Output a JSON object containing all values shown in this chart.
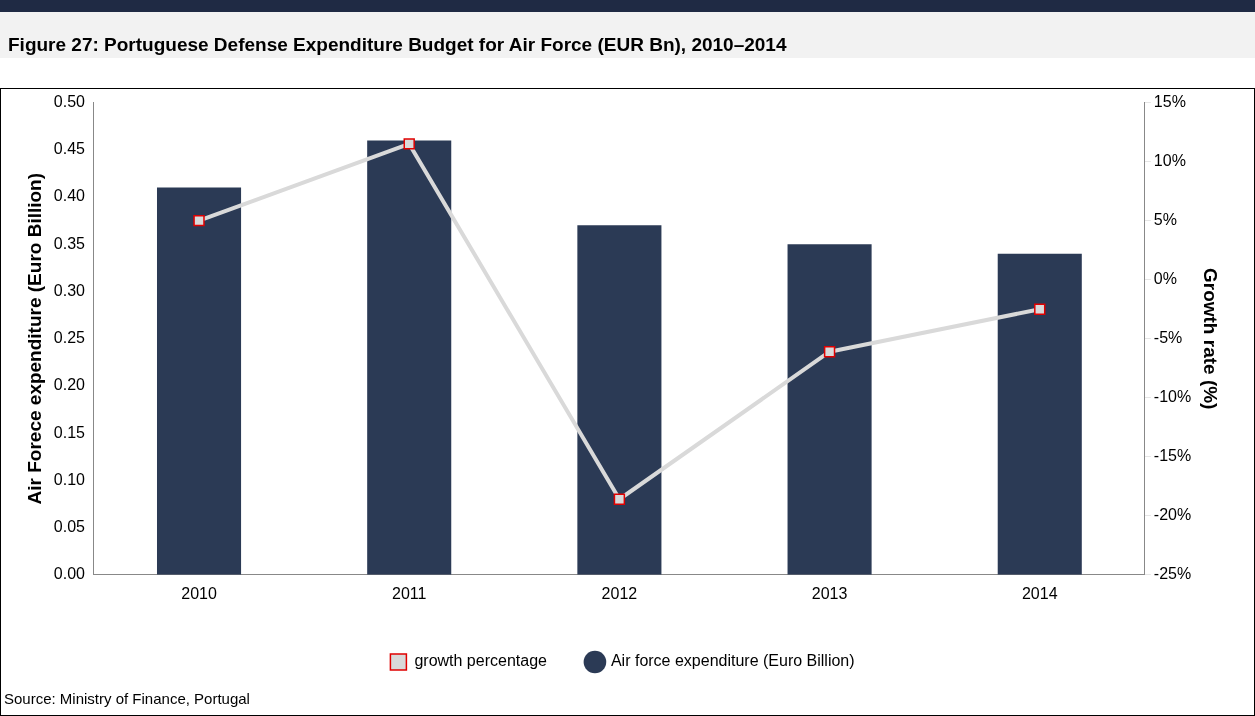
{
  "chart_data": {
    "type": "bar",
    "title": "Figure 27: Portuguese Defense Expenditure Budget for Air Force (EUR Bn), 2010–2014",
    "ylabel": "Air Forece expenditure (Euro Billion)",
    "y2label": "Growth rate (%)",
    "categories": [
      "2010",
      "2011",
      "2012",
      "2013",
      "2014"
    ],
    "series": [
      {
        "name": "Air force expenditure (Euro Billion)",
        "color": "#2b3a55",
        "values": [
          0.41,
          0.46,
          0.37,
          0.35,
          0.34
        ]
      },
      {
        "name": "growth percentage",
        "type": "line",
        "axis": "y2",
        "color": "#d9d9d9",
        "values": [
          5,
          11.5,
          -18.6,
          -6.1,
          -2.5
        ]
      }
    ],
    "ylim": [
      0,
      0.5
    ],
    "yticks": [
      {
        "value": 0,
        "label": "0.00"
      },
      {
        "value": 0.05,
        "label": "0.05"
      },
      {
        "value": 0.1,
        "label": "0.10"
      },
      {
        "value": 0.15,
        "label": "0.15"
      },
      {
        "value": 0.2,
        "label": "0.20"
      },
      {
        "value": 0.25,
        "label": "0.25"
      },
      {
        "value": 0.3,
        "label": "0.30"
      },
      {
        "value": 0.35,
        "label": "0.35"
      },
      {
        "value": 0.4,
        "label": "0.40"
      },
      {
        "value": 0.45,
        "label": "0.45"
      },
      {
        "value": 0.5,
        "label": "0.50"
      }
    ],
    "y2lim": [
      -25,
      15
    ],
    "y2ticks": [
      {
        "value": -25,
        "label": "-25%"
      },
      {
        "value": -20,
        "label": "-20%"
      },
      {
        "value": -15,
        "label": "-15%"
      },
      {
        "value": -10,
        "label": "-10%"
      },
      {
        "value": -5,
        "label": "-5%"
      },
      {
        "value": 0,
        "label": "0%"
      },
      {
        "value": 5,
        "label": "5%"
      },
      {
        "value": 10,
        "label": "10%"
      },
      {
        "value": 15,
        "label": "15%"
      }
    ],
    "grid": false,
    "legend": "bottom",
    "marker": "square",
    "line_style": "solid",
    "annotations": [
      "Source: Ministry of Finance, Portugal"
    ]
  }
}
